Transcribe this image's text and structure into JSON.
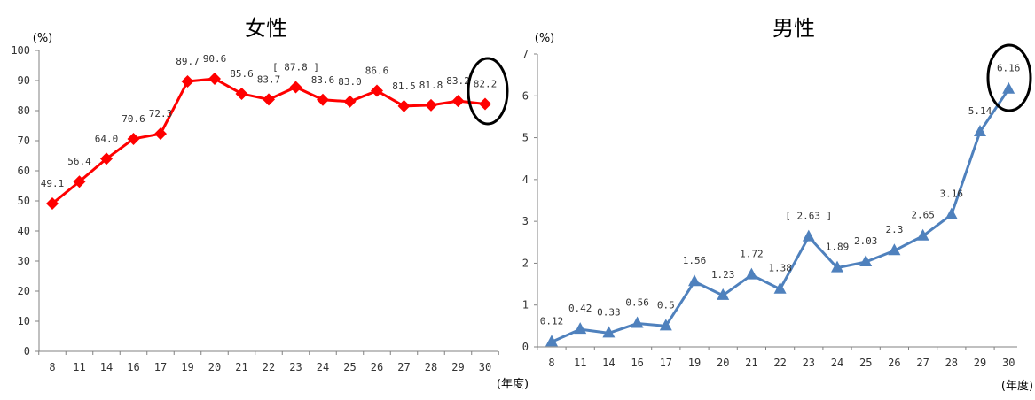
{
  "chart_data": [
    {
      "type": "line",
      "title": "女性",
      "y_unit": "(%)",
      "x_unit": "(年度)",
      "ylim": [
        0,
        100
      ],
      "yticks": [
        0,
        10,
        20,
        30,
        40,
        50,
        60,
        70,
        80,
        90,
        100
      ],
      "grid": false,
      "categories": [
        "8",
        "11",
        "14",
        "16",
        "17",
        "19",
        "20",
        "21",
        "22",
        "23",
        "24",
        "25",
        "26",
        "27",
        "28",
        "29",
        "30"
      ],
      "series": [
        {
          "values": [
            49.1,
            56.4,
            64.0,
            70.6,
            72.3,
            89.7,
            90.6,
            85.6,
            83.7,
            87.8,
            83.6,
            83.0,
            86.6,
            81.5,
            81.8,
            83.2,
            82.2
          ],
          "labels": [
            "49.1",
            "56.4",
            "64.0",
            "70.6",
            "72.3",
            "89.7",
            "90.6",
            "85.6",
            "83.7",
            "[ 87.8 ]",
            "83.6",
            "83.0",
            "86.6",
            "81.5",
            "81.8",
            "83.2",
            "82.2"
          ],
          "color": "#ff0000",
          "marker": "diamond"
        }
      ],
      "highlight": "30"
    },
    {
      "type": "line",
      "title": "男性",
      "y_unit": "(%)",
      "x_unit": "(年度)",
      "ylim": [
        0,
        7
      ],
      "yticks": [
        0,
        1,
        2,
        3,
        4,
        5,
        6,
        7
      ],
      "grid": false,
      "categories": [
        "8",
        "11",
        "14",
        "16",
        "17",
        "19",
        "20",
        "21",
        "22",
        "23",
        "24",
        "25",
        "26",
        "27",
        "28",
        "29",
        "30"
      ],
      "series": [
        {
          "values": [
            0.12,
            0.42,
            0.33,
            0.56,
            0.5,
            1.56,
            1.23,
            1.72,
            1.38,
            2.63,
            1.89,
            2.03,
            2.3,
            2.65,
            3.16,
            5.14,
            6.16
          ],
          "labels": [
            "0.12",
            "0.42",
            "0.33",
            "0.56",
            "0.5",
            "1.56",
            "1.23",
            "1.72",
            "1.38",
            "[ 2.63 ]",
            "1.89",
            "2.03",
            "2.3",
            "2.65",
            "3.16",
            "5.14",
            "6.16"
          ],
          "color": "#4f81bd",
          "marker": "triangle"
        }
      ],
      "highlight": "30"
    }
  ]
}
